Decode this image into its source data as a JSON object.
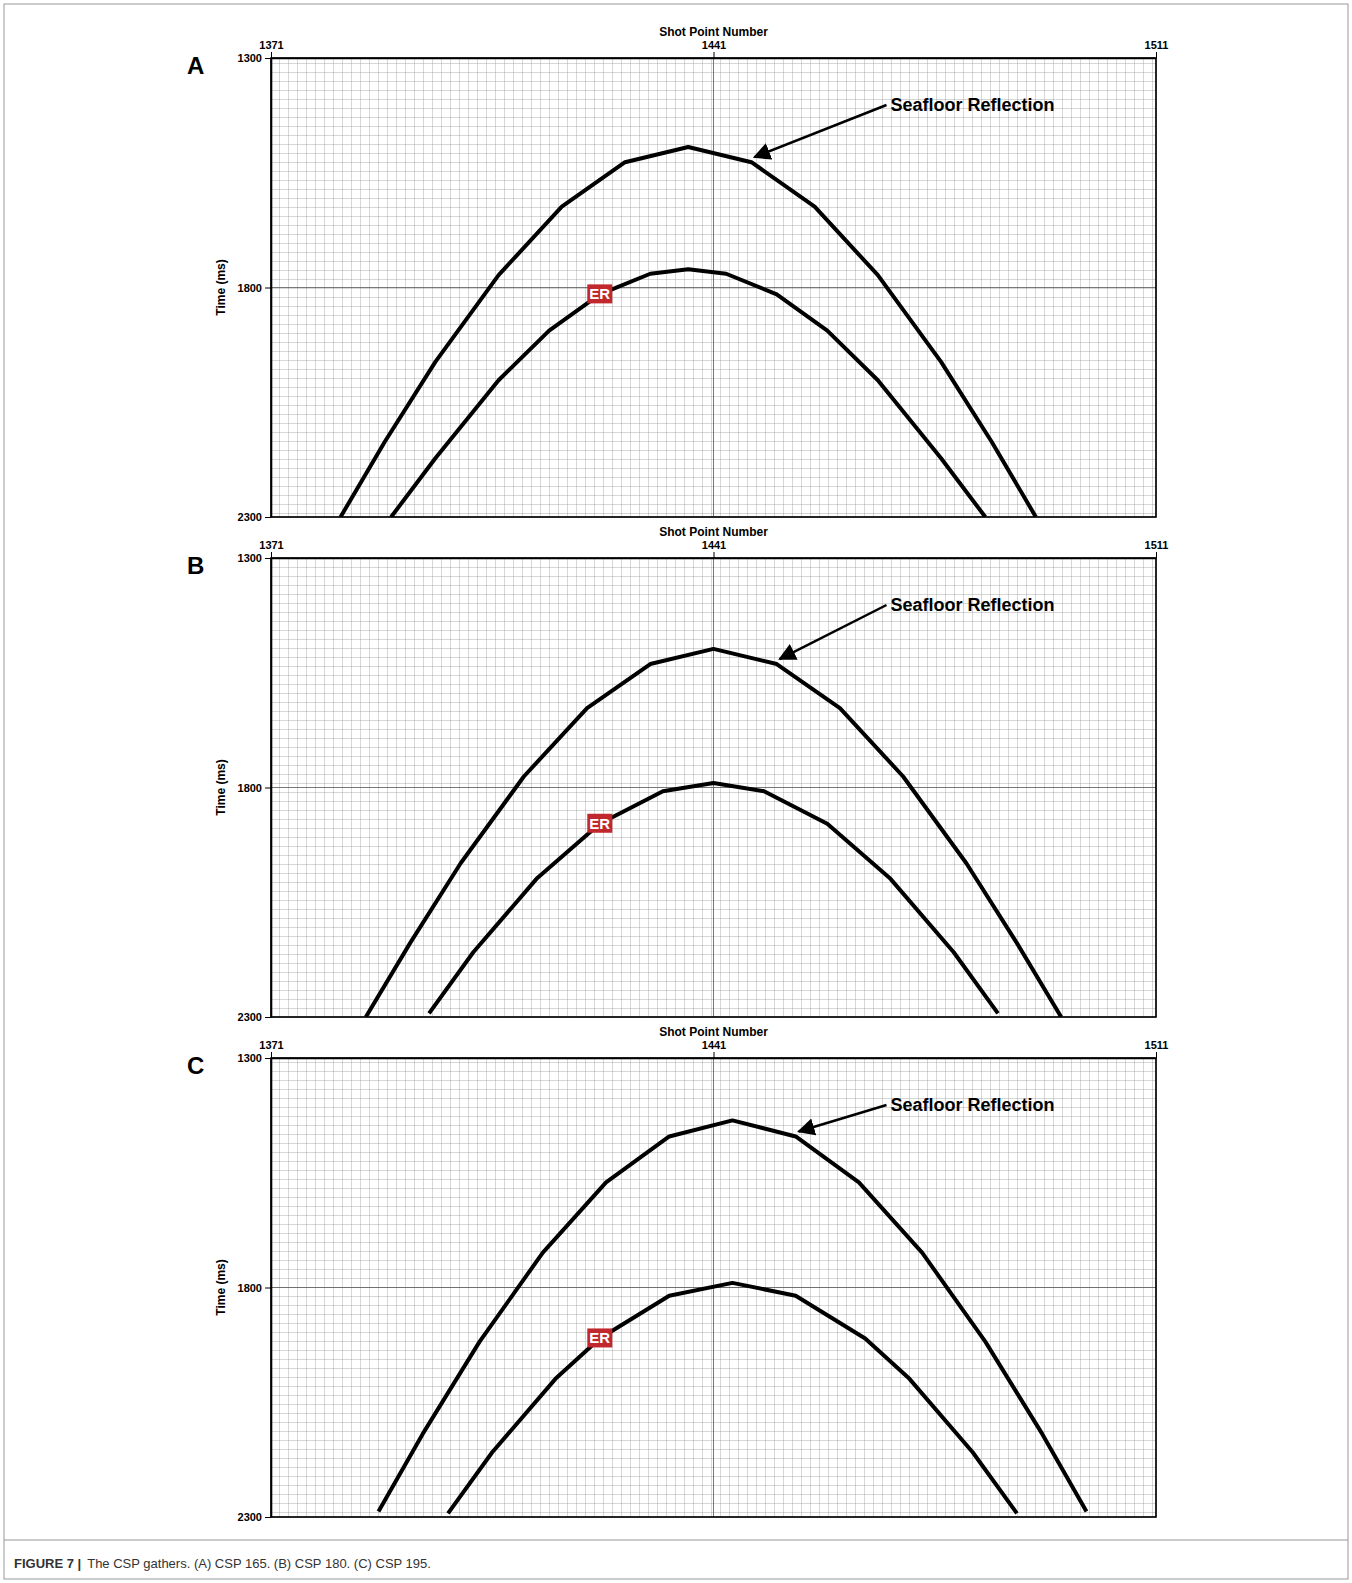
{
  "caption": {
    "label": "FIGURE 7 |",
    "text": "The CSP gathers. (A) CSP 165. (B) CSP 180. (C) CSP 195."
  },
  "chart_data": [
    {
      "type": "line",
      "panel": "A",
      "x_label": "Shot Point Number",
      "y_label": "Time (ms)",
      "xlim": [
        1371,
        1511
      ],
      "xticks": [
        1371,
        1441,
        1511
      ],
      "ylim": [
        1300,
        2300
      ],
      "yticks": [
        1300,
        1800,
        2300
      ],
      "grid": true,
      "series": [
        {
          "name": "Seafloor Reflection",
          "color": "#000000",
          "x": [
            1382,
            1389,
            1397,
            1407,
            1417,
            1427,
            1437,
            1447,
            1457,
            1467,
            1477,
            1485,
            1492
          ],
          "values": [
            2300,
            2136,
            1962,
            1773,
            1624,
            1527,
            1494,
            1527,
            1624,
            1773,
            1962,
            2136,
            2300
          ]
        },
        {
          "name": "ER",
          "color": "#000000",
          "x": [
            1390,
            1397,
            1407,
            1415,
            1423,
            1431,
            1437,
            1443,
            1451,
            1459,
            1467,
            1477,
            1484
          ],
          "values": [
            2300,
            2172,
            2002,
            1894,
            1815,
            1770,
            1760,
            1770,
            1815,
            1894,
            2002,
            2172,
            2300
          ]
        }
      ]
    },
    {
      "type": "line",
      "panel": "B",
      "x_label": "Shot Point Number",
      "y_label": "Time (ms)",
      "xlim": [
        1371,
        1511
      ],
      "xticks": [
        1371,
        1441,
        1511
      ],
      "ylim": [
        1300,
        2300
      ],
      "yticks": [
        1300,
        1800,
        2300
      ],
      "grid": true,
      "series": [
        {
          "name": "Seafloor Reflection",
          "color": "#000000",
          "x": [
            1386,
            1393,
            1401,
            1411,
            1421,
            1431,
            1441,
            1451,
            1461,
            1471,
            1481,
            1489,
            1496
          ],
          "values": [
            2300,
            2139,
            1965,
            1776,
            1627,
            1531,
            1498,
            1531,
            1627,
            1776,
            1965,
            2139,
            2300
          ]
        },
        {
          "name": "ER",
          "color": "#000000",
          "x": [
            1396,
            1403,
            1413,
            1423,
            1433,
            1441,
            1449,
            1459,
            1469,
            1479,
            1486
          ],
          "values": [
            2292,
            2159,
            1999,
            1879,
            1808,
            1790,
            1808,
            1879,
            1999,
            2159,
            2292
          ]
        }
      ]
    },
    {
      "type": "line",
      "panel": "C",
      "x_label": "Shot Point Number",
      "y_label": "Time (ms)",
      "xlim": [
        1371,
        1511
      ],
      "xticks": [
        1371,
        1441,
        1511
      ],
      "ylim": [
        1300,
        2300
      ],
      "yticks": [
        1300,
        1800,
        2300
      ],
      "grid": true,
      "series": [
        {
          "name": "Seafloor Reflection",
          "color": "#000000",
          "x": [
            1388,
            1395,
            1404,
            1414,
            1424,
            1434,
            1444,
            1454,
            1464,
            1474,
            1484,
            1493,
            1500
          ],
          "values": [
            2288,
            2119,
            1918,
            1724,
            1571,
            1471,
            1436,
            1471,
            1571,
            1724,
            1918,
            2119,
            2288
          ]
        },
        {
          "name": "ER",
          "color": "#000000",
          "x": [
            1399,
            1406,
            1416,
            1423,
            1434,
            1444,
            1454,
            1465,
            1472,
            1482,
            1489
          ],
          "values": [
            2292,
            2159,
            1999,
            1911,
            1818,
            1790,
            1818,
            1911,
            1999,
            2159,
            2292
          ]
        }
      ]
    }
  ]
}
